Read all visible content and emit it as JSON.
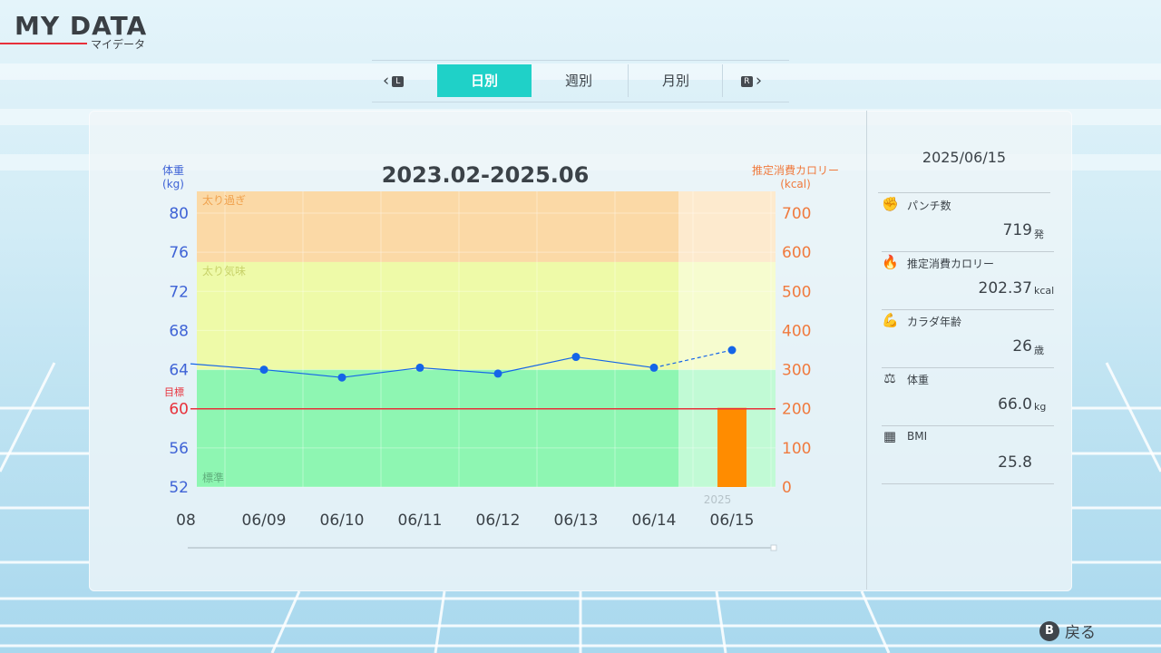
{
  "header": {
    "title": "MY DATA",
    "subtitle": "マイデータ"
  },
  "tabs": {
    "prev_key": "L",
    "next_key": "R",
    "items": [
      {
        "label": "日別",
        "active": true
      },
      {
        "label": "週別",
        "active": false
      },
      {
        "label": "月別",
        "active": false
      }
    ]
  },
  "chart_data": {
    "type": "line",
    "title": "2023.02-2025.06",
    "left_axis": {
      "label_line1": "体重",
      "label_line2": "(kg)",
      "ylim": [
        52,
        80
      ],
      "ticks": [
        "80",
        "76",
        "72",
        "68",
        "64",
        "60",
        "56",
        "52"
      ],
      "color": "#3f63d6"
    },
    "right_axis": {
      "label_line1": "推定消費カロリー",
      "label_line2": "(kcal)",
      "ylim": [
        0,
        700
      ],
      "ticks": [
        "700",
        "600",
        "500",
        "400",
        "300",
        "200",
        "100",
        "0"
      ],
      "color": "#f07a3e"
    },
    "categories": [
      "08",
      "06/09",
      "06/10",
      "06/11",
      "06/12",
      "06/13",
      "06/14",
      "06/15"
    ],
    "year_label": "2025",
    "zones": [
      {
        "label": "太り過ぎ",
        "from": 75,
        "to": 80,
        "color": "#fbd9a6"
      },
      {
        "label": "太り気味",
        "from": 64,
        "to": 75,
        "color": "#eefaa8"
      },
      {
        "label": "標準",
        "from": 52,
        "to": 64,
        "color": "#8ef6b2"
      }
    ],
    "target": {
      "label": "目標",
      "value": 60,
      "color": "#e8303a"
    },
    "series": [
      {
        "type": "line",
        "axis": "left",
        "color": "#1565e8",
        "x": [
          "06/09",
          "06/10",
          "06/11",
          "06/12",
          "06/13",
          "06/14",
          "06/15"
        ],
        "values": [
          64.0,
          63.2,
          64.2,
          63.6,
          65.3,
          64.2,
          66.0
        ],
        "projected_last": true
      },
      {
        "type": "bar",
        "axis": "right",
        "color": "#ff8c00",
        "x": [
          "06/15"
        ],
        "values": [
          202.37
        ]
      }
    ],
    "grid": true
  },
  "side": {
    "date": "2025/06/15",
    "stats": [
      {
        "icon": "punch-icon",
        "glyph": "✊",
        "label": "パンチ数",
        "value": "719",
        "unit": "発"
      },
      {
        "icon": "flame-icon",
        "glyph": "🔥",
        "label": "推定消費カロリー",
        "value": "202.37",
        "unit": "kcal"
      },
      {
        "icon": "muscle-body-icon",
        "glyph": "💪",
        "label": "カラダ年齢",
        "value": "26",
        "unit": "歳"
      },
      {
        "icon": "scale-icon",
        "glyph": "⚖",
        "label": "体重",
        "value": "66.0",
        "unit": "kg"
      },
      {
        "icon": "calculator-icon",
        "glyph": "▦",
        "label": "BMI",
        "value": "25.8",
        "unit": ""
      }
    ]
  },
  "footer": {
    "back_key": "B",
    "back_label": "戻る"
  }
}
